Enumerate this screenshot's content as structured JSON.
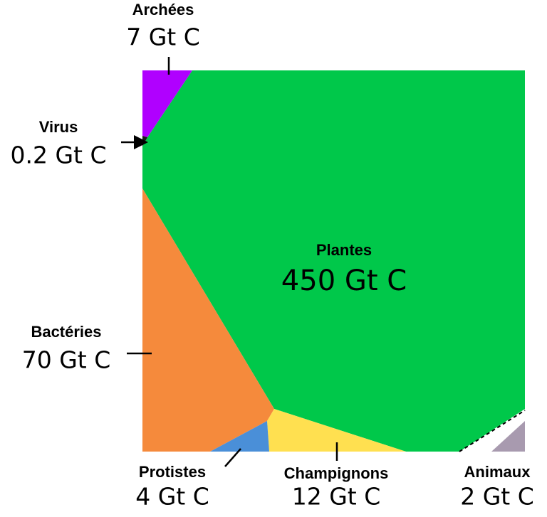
{
  "chart_data": {
    "type": "voronoi",
    "categories": [
      "Plantes",
      "Bactéries",
      "Champignons",
      "Archées",
      "Protistes",
      "Animaux",
      "Virus"
    ],
    "values": [
      450,
      70,
      12,
      7,
      4,
      2,
      0.2
    ],
    "value_labels": [
      "450 Gt C",
      "70 Gt C",
      "12 Gt C",
      "7 Gt C",
      "4 Gt C",
      "2 Gt C",
      "0.2 Gt C"
    ],
    "colors": [
      "#00c84a",
      "#f58a3c",
      "#ffe050",
      "#b000ff",
      "#4a8fd8",
      "#a89aaf",
      "#1a1a1a"
    ]
  }
}
